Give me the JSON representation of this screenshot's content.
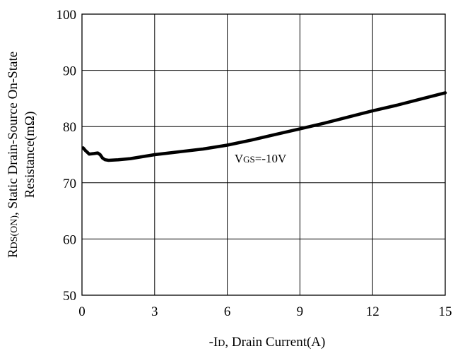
{
  "chart_data": {
    "type": "line",
    "title": "",
    "xlabel": "-ID, Drain Current(A)",
    "xlabel_parts": {
      "prefix": "-I",
      "sub": "D",
      "rest": ", Drain Current(A)"
    },
    "ylabel": "RDS(ON), Static Drain-Source On-State Resistance(mΩ)",
    "ylabel_line1_parts": {
      "prefix": "R",
      "sub": "DS(ON)",
      "rest": ", Static Drain-Source On-State"
    },
    "ylabel_line2": "Resistance(mΩ)",
    "xlim": [
      0,
      15
    ],
    "ylim": [
      50,
      100
    ],
    "xticks": [
      0,
      3,
      6,
      9,
      12,
      15
    ],
    "xtick_labels": [
      "0",
      "3",
      "6",
      "9",
      "12",
      "15"
    ],
    "yticks": [
      50,
      60,
      70,
      80,
      90,
      100
    ],
    "ytick_labels": [
      "50",
      "60",
      "70",
      "80",
      "90",
      "100"
    ],
    "grid": true,
    "annotation": {
      "prefix": "V",
      "sub": "GS",
      "rest": "=-10V",
      "x": 6.3,
      "y": 73.6
    },
    "series": [
      {
        "color": "#000000",
        "x": [
          0.05,
          0.15,
          0.3,
          0.5,
          0.65,
          0.75,
          0.85,
          0.95,
          1.1,
          1.5,
          2,
          3,
          4,
          5,
          6,
          7,
          8,
          9,
          10,
          11,
          12,
          13,
          14,
          15
        ],
        "y": [
          76.2,
          75.7,
          75.1,
          75.2,
          75.3,
          75.0,
          74.4,
          74.1,
          74.0,
          74.1,
          74.3,
          75.0,
          75.5,
          76.0,
          76.7,
          77.6,
          78.6,
          79.6,
          80.6,
          81.7,
          82.8,
          83.8,
          84.9,
          86.0
        ]
      }
    ]
  }
}
